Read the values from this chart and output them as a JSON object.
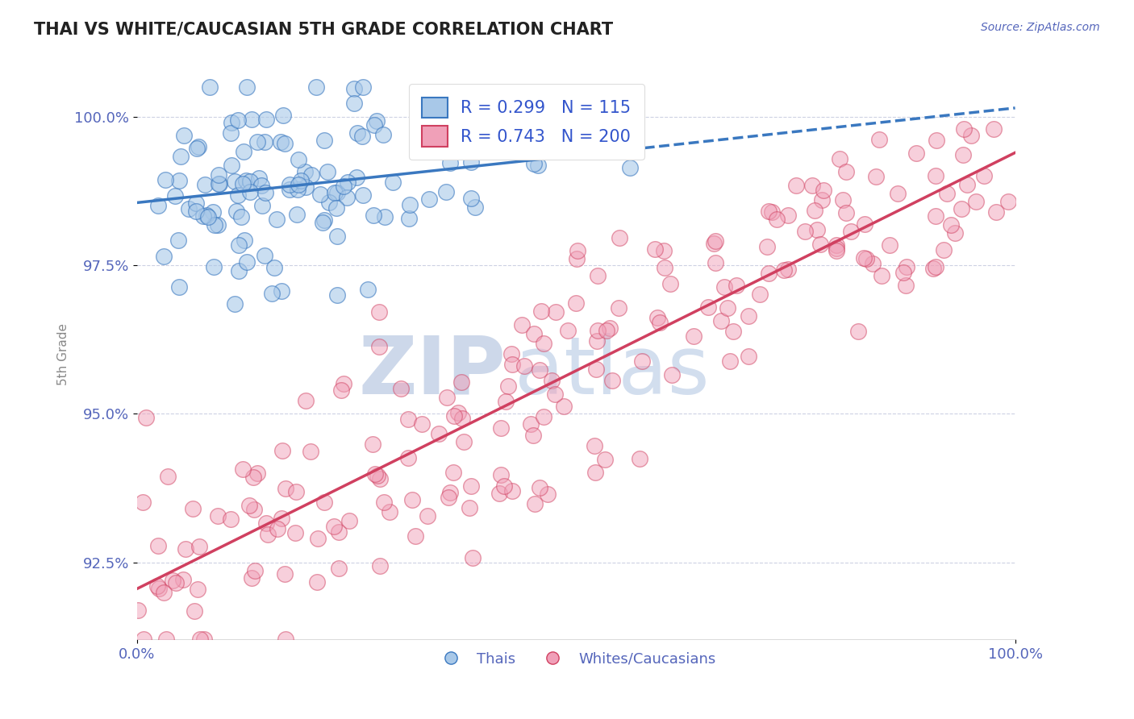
{
  "title": "THAI VS WHITE/CAUCASIAN 5TH GRADE CORRELATION CHART",
  "source": "Source: ZipAtlas.com",
  "ylabel": "5th Grade",
  "legend_labels": [
    "Thais",
    "Whites/Caucasians"
  ],
  "r_blue": 0.299,
  "n_blue": 115,
  "r_pink": 0.743,
  "n_pink": 200,
  "blue_color": "#a8c8e8",
  "pink_color": "#f0a0b8",
  "trendline_blue": "#3a78c0",
  "trendline_pink": "#d04060",
  "title_color": "#222222",
  "axis_color": "#5566bb",
  "legend_r_color": "#3355cc",
  "background_color": "#ffffff",
  "grid_color": "#c8cce0",
  "watermark_color_zip": "#c8d4e8",
  "watermark_color_atlas": "#c0d0e8",
  "xlim": [
    0.0,
    1.0
  ],
  "ylim": [
    0.912,
    1.008
  ],
  "yticks": [
    0.925,
    0.95,
    0.975,
    1.0
  ],
  "blue_seed": 42,
  "pink_seed": 7
}
